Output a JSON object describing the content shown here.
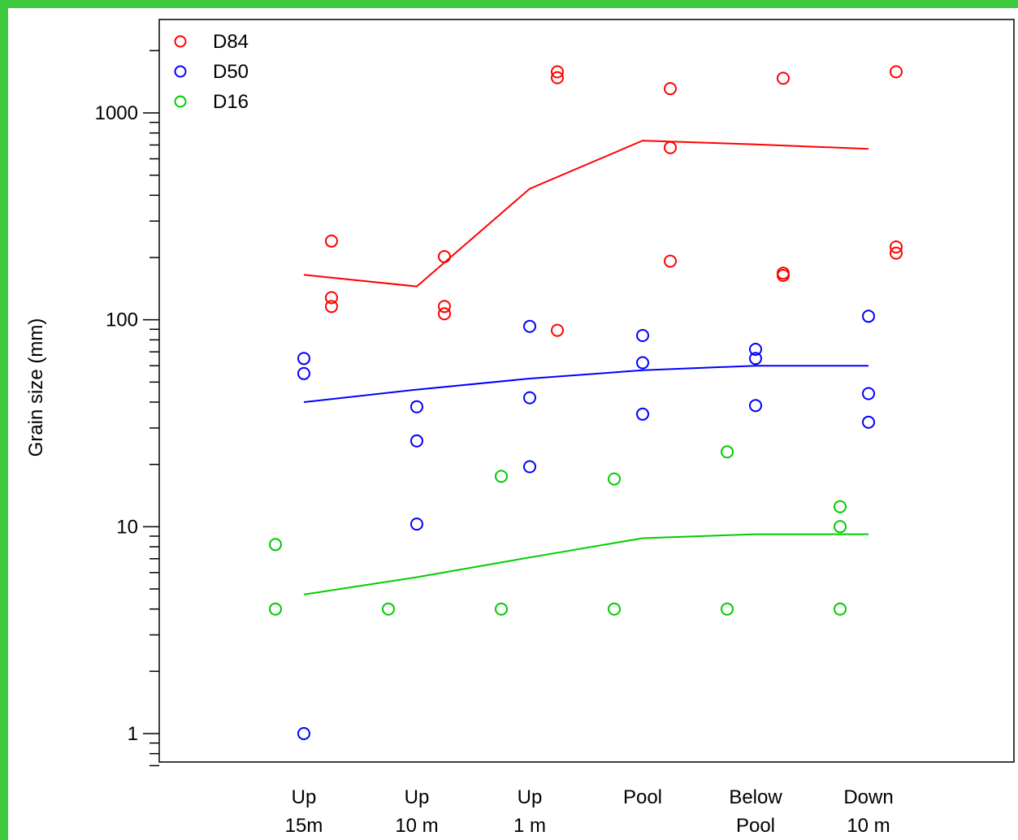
{
  "chart_data": {
    "type": "scatter",
    "title": "",
    "ylabel": "Grain size (mm)",
    "xlabel": "",
    "y_scale": "log",
    "ylim": [
      0.7,
      2600
    ],
    "y_ticks": [
      1,
      10,
      100,
      1000
    ],
    "categories": [
      {
        "lines": [
          "Up",
          "15m"
        ]
      },
      {
        "lines": [
          "Up",
          "10 m"
        ]
      },
      {
        "lines": [
          "Up",
          "1 m"
        ]
      },
      {
        "lines": [
          "Pool"
        ]
      },
      {
        "lines": [
          "Below",
          "Pool"
        ]
      },
      {
        "lines": [
          "Down",
          "10 m"
        ]
      }
    ],
    "legend": {
      "position": "top-left",
      "entries": [
        {
          "name": "D84",
          "color": "#ff0000"
        },
        {
          "name": "D50",
          "color": "#0000ff"
        },
        {
          "name": "D16",
          "color": "#00cc00"
        }
      ]
    },
    "series": [
      {
        "name": "D84",
        "color": "#ff0000",
        "points": [
          {
            "cat": 0,
            "y": 240
          },
          {
            "cat": 0,
            "y": 128
          },
          {
            "cat": 0,
            "y": 116
          },
          {
            "cat": 1,
            "y": 202
          },
          {
            "cat": 1,
            "y": 116
          },
          {
            "cat": 1,
            "y": 107
          },
          {
            "cat": 2,
            "y": 1580
          },
          {
            "cat": 2,
            "y": 1480
          },
          {
            "cat": 2,
            "y": 89
          },
          {
            "cat": 3,
            "y": 1310
          },
          {
            "cat": 3,
            "y": 680
          },
          {
            "cat": 3,
            "y": 192
          },
          {
            "cat": 4,
            "y": 1470
          },
          {
            "cat": 4,
            "y": 168
          },
          {
            "cat": 4,
            "y": 164
          },
          {
            "cat": 5,
            "y": 1580
          },
          {
            "cat": 5,
            "y": 225
          },
          {
            "cat": 5,
            "y": 210
          }
        ],
        "trend": [
          165,
          145,
          430,
          735,
          705,
          670
        ]
      },
      {
        "name": "D50",
        "color": "#0000ff",
        "points": [
          {
            "cat": 0,
            "y": 65
          },
          {
            "cat": 0,
            "y": 55
          },
          {
            "cat": 0,
            "y": 1
          },
          {
            "cat": 1,
            "y": 38
          },
          {
            "cat": 1,
            "y": 26
          },
          {
            "cat": 1,
            "y": 10.3
          },
          {
            "cat": 2,
            "y": 93
          },
          {
            "cat": 2,
            "y": 42
          },
          {
            "cat": 2,
            "y": 19.5
          },
          {
            "cat": 3,
            "y": 84
          },
          {
            "cat": 3,
            "y": 62
          },
          {
            "cat": 3,
            "y": 35
          },
          {
            "cat": 4,
            "y": 72
          },
          {
            "cat": 4,
            "y": 65
          },
          {
            "cat": 4,
            "y": 38.5
          },
          {
            "cat": 5,
            "y": 104
          },
          {
            "cat": 5,
            "y": 44
          },
          {
            "cat": 5,
            "y": 32
          }
        ],
        "trend": [
          40,
          46,
          52,
          57,
          60,
          60
        ]
      },
      {
        "name": "D16",
        "color": "#00cc00",
        "points": [
          {
            "cat": 0,
            "y": 8.2
          },
          {
            "cat": 0,
            "y": 4
          },
          {
            "cat": 1,
            "y": 4
          },
          {
            "cat": 2,
            "y": 17.5
          },
          {
            "cat": 2,
            "y": 4
          },
          {
            "cat": 3,
            "y": 17
          },
          {
            "cat": 3,
            "y": 4
          },
          {
            "cat": 4,
            "y": 23
          },
          {
            "cat": 4,
            "y": 4
          },
          {
            "cat": 5,
            "y": 12.5
          },
          {
            "cat": 5,
            "y": 10
          },
          {
            "cat": 5,
            "y": 4
          }
        ],
        "trend": [
          4.7,
          5.7,
          7.1,
          8.8,
          9.2,
          9.2
        ]
      }
    ]
  }
}
